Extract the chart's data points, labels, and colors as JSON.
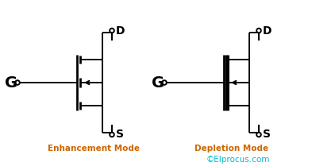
{
  "bg_color": "#ffffff",
  "line_color": "#000000",
  "text_color_label": "#cc6600",
  "text_color_copyright": "#00bbcc",
  "figsize": [
    3.93,
    2.09
  ],
  "dpi": 100,
  "enhancement_label": "Enhancement Mode",
  "depletion_label": "Depletion Mode",
  "copyright": "©Elprocus.com",
  "lw": 1.4,
  "lw_thick": 3.5
}
